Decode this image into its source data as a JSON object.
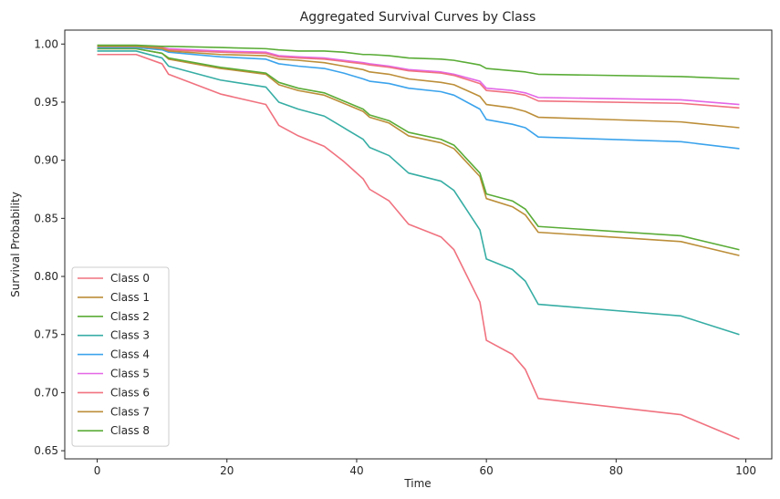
{
  "chart_data": {
    "type": "line",
    "title": "Aggregated Survival Curves by Class",
    "xlabel": "Time",
    "ylabel": "Survival Probability",
    "xlim": [
      -5,
      104
    ],
    "ylim": [
      0.643,
      1.012
    ],
    "xticks": [
      "0",
      "20",
      "40",
      "60",
      "80",
      "100"
    ],
    "xtick_values": [
      0,
      20,
      40,
      60,
      80,
      100
    ],
    "yticks": [
      "0.65",
      "0.70",
      "0.75",
      "0.80",
      "0.85",
      "0.90",
      "0.95",
      "1.00"
    ],
    "ytick_values": [
      0.65,
      0.7,
      0.75,
      0.8,
      0.85,
      0.9,
      0.95,
      1.0
    ],
    "grid": false,
    "legend_position": "lower-left",
    "series": [
      {
        "name": "Class 0",
        "color": "#f0727f",
        "x": [
          0,
          6,
          10,
          11,
          19,
          26,
          28,
          31,
          35,
          38,
          41,
          42,
          45,
          48,
          53,
          55,
          59,
          60,
          64,
          66,
          68,
          90,
          99
        ],
        "y": [
          0.991,
          0.991,
          0.983,
          0.974,
          0.957,
          0.948,
          0.93,
          0.921,
          0.912,
          0.899,
          0.884,
          0.875,
          0.865,
          0.845,
          0.834,
          0.823,
          0.778,
          0.745,
          0.733,
          0.72,
          0.695,
          0.681,
          0.66
        ]
      },
      {
        "name": "Class 1",
        "color": "#bc8e39",
        "x": [
          0,
          6,
          10,
          11,
          19,
          26,
          28,
          31,
          35,
          38,
          41,
          42,
          45,
          48,
          53,
          55,
          59,
          60,
          64,
          66,
          68,
          90,
          99
        ],
        "y": [
          0.996,
          0.996,
          0.992,
          0.987,
          0.979,
          0.974,
          0.965,
          0.96,
          0.956,
          0.949,
          0.942,
          0.937,
          0.932,
          0.921,
          0.915,
          0.91,
          0.886,
          0.867,
          0.86,
          0.853,
          0.838,
          0.83,
          0.818
        ]
      },
      {
        "name": "Class 2",
        "color": "#5aac37",
        "x": [
          0,
          6,
          10,
          11,
          19,
          26,
          28,
          31,
          35,
          38,
          41,
          42,
          45,
          48,
          53,
          55,
          59,
          60,
          64,
          66,
          68,
          90,
          99
        ],
        "y": [
          0.996,
          0.996,
          0.992,
          0.988,
          0.98,
          0.975,
          0.967,
          0.962,
          0.958,
          0.951,
          0.944,
          0.939,
          0.934,
          0.924,
          0.918,
          0.913,
          0.889,
          0.871,
          0.865,
          0.858,
          0.843,
          0.835,
          0.823
        ]
      },
      {
        "name": "Class 3",
        "color": "#36ada4",
        "x": [
          0,
          6,
          10,
          11,
          19,
          26,
          28,
          31,
          35,
          38,
          41,
          42,
          45,
          48,
          53,
          55,
          59,
          60,
          64,
          66,
          68,
          90,
          99
        ],
        "y": [
          0.994,
          0.994,
          0.988,
          0.981,
          0.969,
          0.963,
          0.95,
          0.944,
          0.938,
          0.928,
          0.918,
          0.911,
          0.904,
          0.889,
          0.882,
          0.874,
          0.84,
          0.815,
          0.806,
          0.796,
          0.776,
          0.766,
          0.75
        ]
      },
      {
        "name": "Class 4",
        "color": "#3ba3ec",
        "x": [
          0,
          6,
          10,
          11,
          19,
          26,
          28,
          31,
          35,
          38,
          41,
          42,
          45,
          48,
          53,
          55,
          59,
          60,
          64,
          66,
          68,
          90,
          99
        ],
        "y": [
          0.997,
          0.997,
          0.995,
          0.993,
          0.989,
          0.987,
          0.983,
          0.981,
          0.979,
          0.975,
          0.97,
          0.968,
          0.966,
          0.962,
          0.959,
          0.956,
          0.944,
          0.935,
          0.931,
          0.928,
          0.92,
          0.916,
          0.91
        ]
      },
      {
        "name": "Class 5",
        "color": "#e366e6",
        "x": [
          0,
          6,
          10,
          11,
          19,
          26,
          28,
          31,
          35,
          38,
          41,
          42,
          45,
          48,
          53,
          55,
          59,
          60,
          64,
          66,
          68,
          90,
          99
        ],
        "y": [
          0.998,
          0.998,
          0.997,
          0.996,
          0.994,
          0.993,
          0.99,
          0.989,
          0.988,
          0.986,
          0.984,
          0.983,
          0.981,
          0.978,
          0.976,
          0.974,
          0.968,
          0.962,
          0.96,
          0.958,
          0.954,
          0.952,
          0.948
        ]
      },
      {
        "name": "Class 6",
        "color": "#f0727f",
        "x": [
          0,
          6,
          10,
          11,
          19,
          26,
          28,
          31,
          35,
          38,
          41,
          42,
          45,
          48,
          53,
          55,
          59,
          60,
          64,
          66,
          68,
          90,
          99
        ],
        "y": [
          0.998,
          0.998,
          0.997,
          0.995,
          0.993,
          0.992,
          0.989,
          0.988,
          0.987,
          0.985,
          0.983,
          0.982,
          0.98,
          0.977,
          0.975,
          0.973,
          0.966,
          0.96,
          0.958,
          0.956,
          0.951,
          0.949,
          0.945
        ]
      },
      {
        "name": "Class 7",
        "color": "#bc8e39",
        "x": [
          0,
          6,
          10,
          11,
          19,
          26,
          28,
          31,
          35,
          38,
          41,
          42,
          45,
          48,
          53,
          55,
          59,
          60,
          64,
          66,
          68,
          90,
          99
        ],
        "y": [
          0.998,
          0.998,
          0.996,
          0.994,
          0.991,
          0.99,
          0.987,
          0.986,
          0.984,
          0.981,
          0.978,
          0.976,
          0.974,
          0.97,
          0.967,
          0.965,
          0.955,
          0.948,
          0.945,
          0.942,
          0.937,
          0.933,
          0.928
        ]
      },
      {
        "name": "Class 8",
        "color": "#5aac37",
        "x": [
          0,
          6,
          10,
          11,
          19,
          26,
          28,
          31,
          35,
          38,
          41,
          42,
          45,
          48,
          53,
          55,
          59,
          60,
          64,
          66,
          68,
          90,
          99
        ],
        "y": [
          0.999,
          0.999,
          0.998,
          0.998,
          0.997,
          0.996,
          0.995,
          0.994,
          0.994,
          0.993,
          0.991,
          0.991,
          0.99,
          0.988,
          0.987,
          0.986,
          0.982,
          0.979,
          0.977,
          0.976,
          0.974,
          0.972,
          0.97
        ]
      }
    ]
  }
}
